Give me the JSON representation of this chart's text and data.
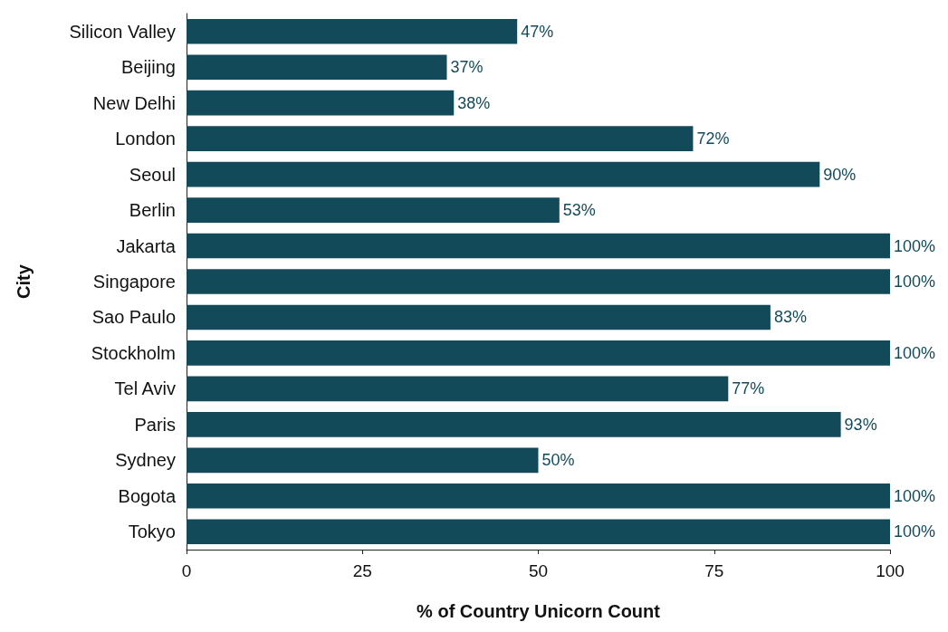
{
  "chart_data": {
    "type": "bar",
    "orientation": "horizontal",
    "ylabel": "City",
    "xlabel": "% of Country Unicorn Count",
    "categories": [
      "Silicon Valley",
      "Beijing",
      "New Delhi",
      "London",
      "Seoul",
      "Berlin",
      "Jakarta",
      "Singapore",
      "Sao Paulo",
      "Stockholm",
      "Tel Aviv",
      "Paris",
      "Sydney",
      "Bogota",
      "Tokyo"
    ],
    "values": [
      47,
      37,
      38,
      72,
      90,
      53,
      100,
      100,
      83,
      100,
      77,
      93,
      50,
      100,
      100
    ],
    "value_labels": [
      "47%",
      "37%",
      "38%",
      "72%",
      "90%",
      "53%",
      "100%",
      "100%",
      "83%",
      "100%",
      "77%",
      "93%",
      "50%",
      "100%",
      "100%"
    ],
    "color": "#134a5a",
    "xlim": [
      0,
      100
    ],
    "xticks": [
      0,
      25,
      50,
      75,
      100
    ],
    "grid": false
  }
}
